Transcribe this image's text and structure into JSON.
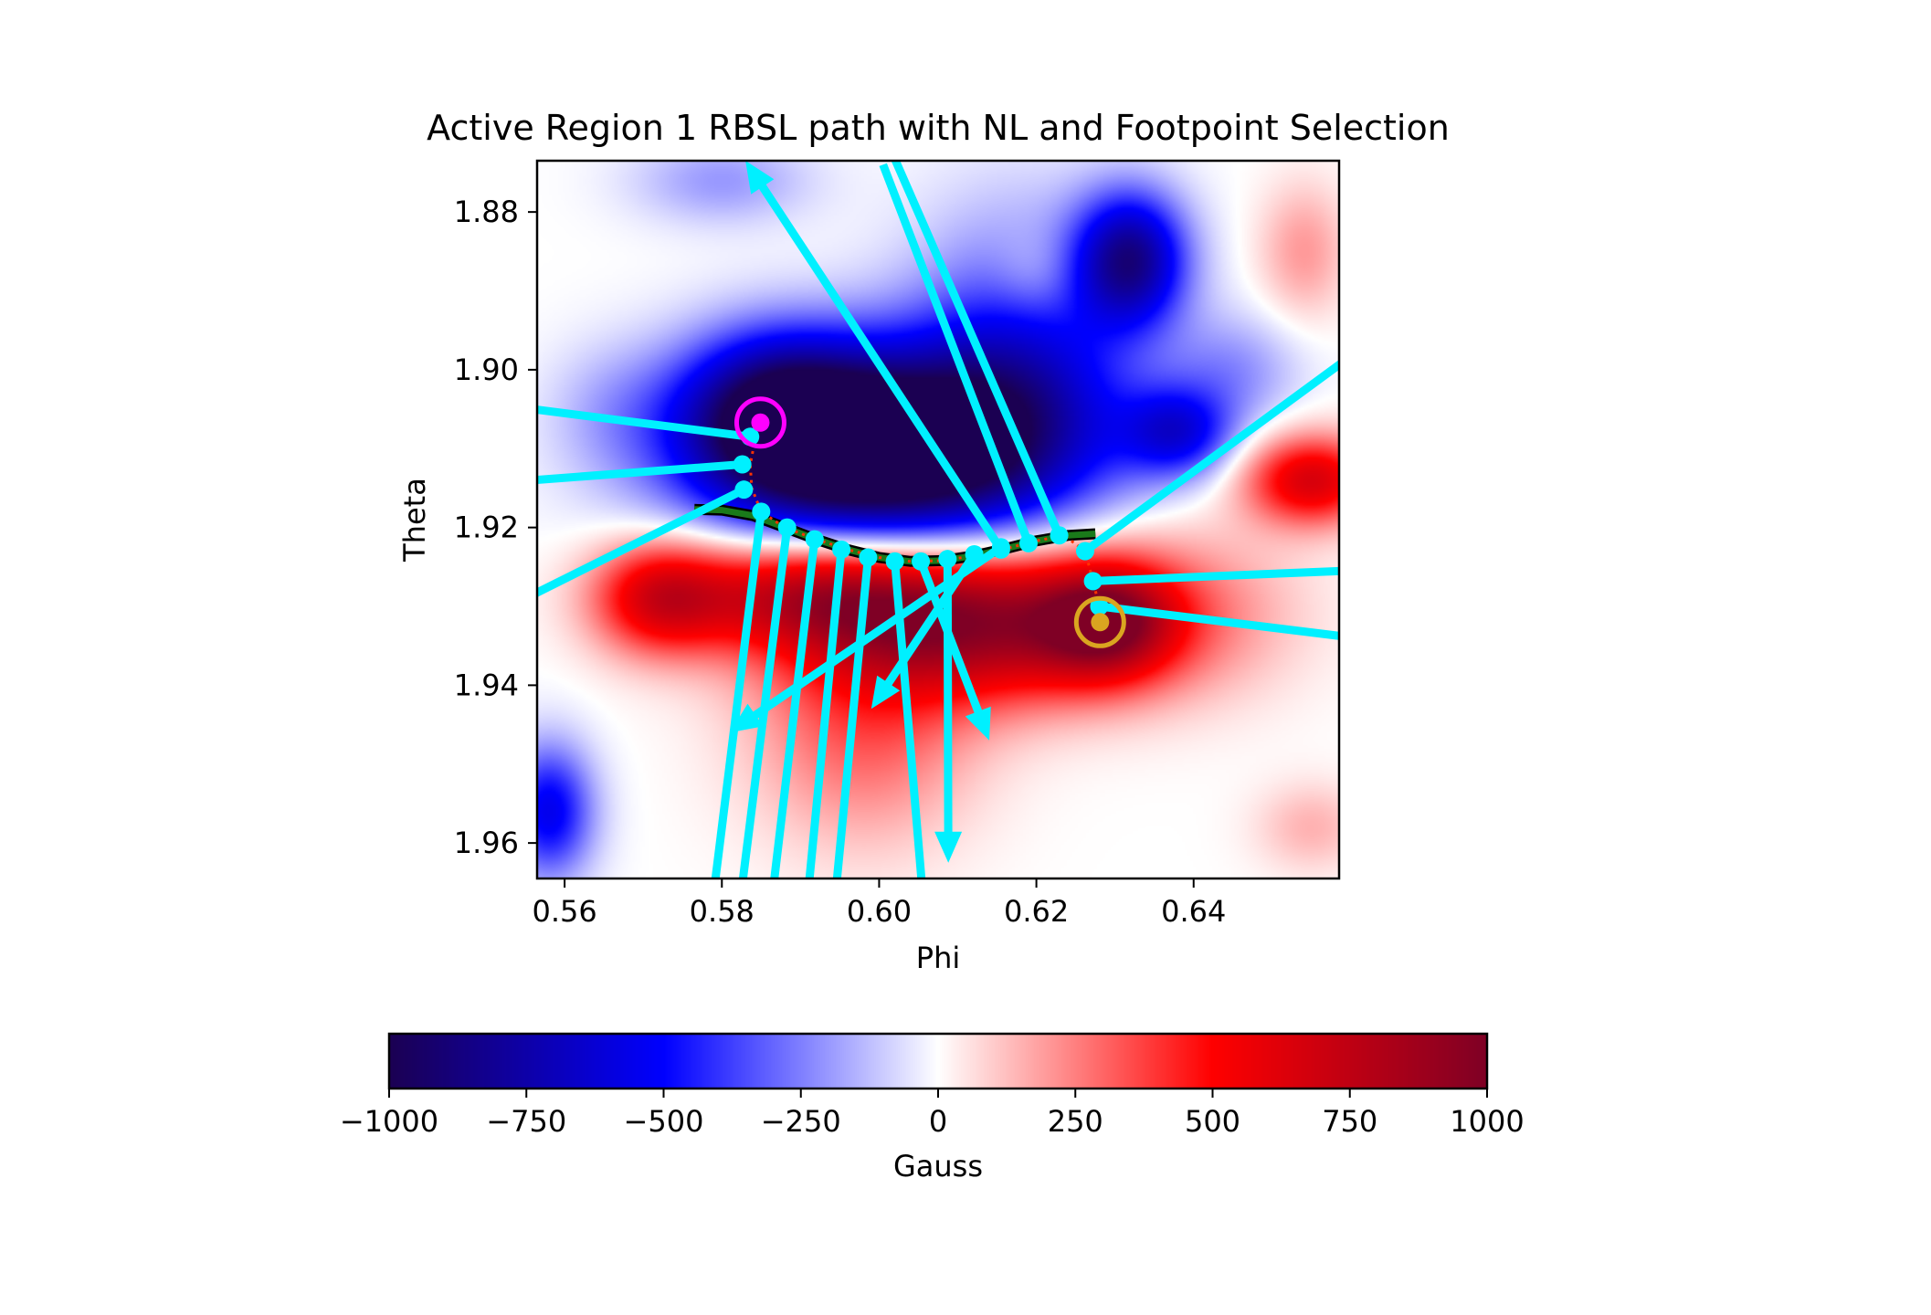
{
  "chart_data": {
    "type": "heatmap",
    "title": "Active Region 1 RBSL path with NL and Footpoint Selection",
    "xlabel": "Phi",
    "ylabel": "Theta",
    "xlim": [
      0.5565,
      0.6585
    ],
    "ylim": [
      1.9645,
      1.8735
    ],
    "y_inverted": true,
    "x_ticks": [
      {
        "value": 0.56,
        "label": "0.56"
      },
      {
        "value": 0.58,
        "label": "0.58"
      },
      {
        "value": 0.6,
        "label": "0.60"
      },
      {
        "value": 0.62,
        "label": "0.62"
      },
      {
        "value": 0.64,
        "label": "0.64"
      }
    ],
    "y_ticks": [
      {
        "value": 1.88,
        "label": "1.88"
      },
      {
        "value": 1.9,
        "label": "1.90"
      },
      {
        "value": 1.92,
        "label": "1.92"
      },
      {
        "value": 1.94,
        "label": "1.94"
      },
      {
        "value": 1.96,
        "label": "1.96"
      }
    ],
    "colormap": "seismic",
    "colormap_stops": [
      {
        "value": -1000,
        "color": "#1b0052"
      },
      {
        "value": -500,
        "color": "#0000ff"
      },
      {
        "value": 0,
        "color": "#ffffff"
      },
      {
        "value": 500,
        "color": "#ff0000"
      },
      {
        "value": 1000,
        "color": "#7f0025"
      }
    ],
    "field_blobs": [
      {
        "phi": 0.6,
        "theta": 1.912,
        "strength": -1050,
        "sx": 0.016,
        "sy": 0.008
      },
      {
        "phi": 0.587,
        "theta": 1.905,
        "strength": -800,
        "sx": 0.009,
        "sy": 0.007
      },
      {
        "phi": 0.61,
        "theta": 1.905,
        "strength": -450,
        "sx": 0.014,
        "sy": 0.008
      },
      {
        "phi": 0.632,
        "theta": 1.886,
        "strength": -800,
        "sx": 0.005,
        "sy": 0.006
      },
      {
        "phi": 0.618,
        "theta": 1.896,
        "strength": -350,
        "sx": 0.01,
        "sy": 0.012
      },
      {
        "phi": 0.638,
        "theta": 1.908,
        "strength": -500,
        "sx": 0.005,
        "sy": 0.004
      },
      {
        "phi": 0.645,
        "theta": 1.9,
        "strength": -200,
        "sx": 0.006,
        "sy": 0.005
      },
      {
        "phi": 0.58,
        "theta": 1.876,
        "strength": -200,
        "sx": 0.008,
        "sy": 0.004
      },
      {
        "phi": 0.558,
        "theta": 1.956,
        "strength": -550,
        "sx": 0.004,
        "sy": 0.006
      },
      {
        "phi": 0.566,
        "theta": 1.905,
        "strength": -120,
        "sx": 0.006,
        "sy": 0.006
      },
      {
        "phi": 0.612,
        "theta": 1.932,
        "strength": 900,
        "sx": 0.016,
        "sy": 0.007
      },
      {
        "phi": 0.629,
        "theta": 1.932,
        "strength": 650,
        "sx": 0.006,
        "sy": 0.005
      },
      {
        "phi": 0.59,
        "theta": 1.928,
        "strength": 600,
        "sx": 0.012,
        "sy": 0.005
      },
      {
        "phi": 0.572,
        "theta": 1.929,
        "strength": 550,
        "sx": 0.006,
        "sy": 0.005
      },
      {
        "phi": 0.598,
        "theta": 1.946,
        "strength": 300,
        "sx": 0.01,
        "sy": 0.01
      },
      {
        "phi": 0.655,
        "theta": 1.914,
        "strength": 650,
        "sx": 0.006,
        "sy": 0.004
      },
      {
        "phi": 0.64,
        "theta": 1.93,
        "strength": 150,
        "sx": 0.01,
        "sy": 0.008
      },
      {
        "phi": 0.654,
        "theta": 1.885,
        "strength": 200,
        "sx": 0.004,
        "sy": 0.006
      },
      {
        "phi": 0.655,
        "theta": 1.958,
        "strength": 150,
        "sx": 0.005,
        "sy": 0.004
      },
      {
        "phi": 0.62,
        "theta": 1.888,
        "strength": 120,
        "sx": 0.004,
        "sy": 0.004
      }
    ],
    "neutral_line": [
      [
        0.5765,
        1.9177
      ],
      [
        0.58,
        1.9178
      ],
      [
        0.584,
        1.9185
      ],
      [
        0.588,
        1.92
      ],
      [
        0.592,
        1.9215
      ],
      [
        0.596,
        1.9228
      ],
      [
        0.6,
        1.9238
      ],
      [
        0.604,
        1.9243
      ],
      [
        0.608,
        1.9242
      ],
      [
        0.612,
        1.9236
      ],
      [
        0.616,
        1.9227
      ],
      [
        0.62,
        1.9217
      ],
      [
        0.624,
        1.921
      ],
      [
        0.6275,
        1.9208
      ]
    ],
    "rbsl_path": [
      [
        0.5843,
        1.9085
      ],
      [
        0.5836,
        1.912
      ],
      [
        0.5838,
        1.915
      ],
      [
        0.585,
        1.918
      ],
      [
        0.588,
        1.92
      ],
      [
        0.592,
        1.9215
      ],
      [
        0.596,
        1.9228
      ],
      [
        0.6,
        1.9238
      ],
      [
        0.604,
        1.9243
      ],
      [
        0.608,
        1.9242
      ],
      [
        0.612,
        1.9236
      ],
      [
        0.616,
        1.9227
      ],
      [
        0.62,
        1.9217
      ],
      [
        0.6235,
        1.921
      ],
      [
        0.6262,
        1.923
      ],
      [
        0.6272,
        1.9268
      ],
      [
        0.628,
        1.93
      ]
    ],
    "footpoints": [
      {
        "name": "negative footpoint",
        "phi": 0.5849,
        "theta": 1.9067,
        "color": "#ff00ff"
      },
      {
        "name": "positive footpoint",
        "phi": 0.6281,
        "theta": 1.932,
        "color": "#daa520"
      }
    ],
    "field_vectors": [
      {
        "phi": 0.5836,
        "theta": 1.9085,
        "tip_phi": 0.556,
        "tip_theta": 1.905,
        "arrowhead": false
      },
      {
        "phi": 0.5826,
        "theta": 1.912,
        "tip_phi": 0.556,
        "tip_theta": 1.914,
        "arrowhead": false
      },
      {
        "phi": 0.5828,
        "theta": 1.9152,
        "tip_phi": 0.556,
        "tip_theta": 1.9285,
        "arrowhead": false
      },
      {
        "phi": 0.585,
        "theta": 1.918,
        "tip_phi": 0.579,
        "tip_theta": 1.966,
        "arrowhead": false
      },
      {
        "phi": 0.5883,
        "theta": 1.92,
        "tip_phi": 0.5825,
        "tip_theta": 1.966,
        "arrowhead": false
      },
      {
        "phi": 0.5918,
        "theta": 1.9215,
        "tip_phi": 0.5865,
        "tip_theta": 1.966,
        "arrowhead": false
      },
      {
        "phi": 0.5952,
        "theta": 1.9228,
        "tip_phi": 0.591,
        "tip_theta": 1.966,
        "arrowhead": false
      },
      {
        "phi": 0.5986,
        "theta": 1.9238,
        "tip_phi": 0.5945,
        "tip_theta": 1.966,
        "arrowhead": false
      },
      {
        "phi": 0.602,
        "theta": 1.9243,
        "tip_phi": 0.6055,
        "tip_theta": 1.966,
        "arrowhead": false
      },
      {
        "phi": 0.6053,
        "theta": 1.9243,
        "tip_phi": 0.614,
        "tip_theta": 1.947,
        "arrowhead": true
      },
      {
        "phi": 0.6087,
        "theta": 1.924,
        "tip_phi": 0.6088,
        "tip_theta": 1.9625,
        "arrowhead": true
      },
      {
        "phi": 0.6121,
        "theta": 1.9234,
        "tip_phi": 0.599,
        "tip_theta": 1.943,
        "arrowhead": true
      },
      {
        "phi": 0.6155,
        "theta": 1.9225,
        "tip_phi": 0.581,
        "tip_theta": 1.946,
        "arrowhead": true
      },
      {
        "phi": 0.619,
        "theta": 1.922,
        "tip_phi": 0.6005,
        "tip_theta": 1.874,
        "arrowhead": false
      },
      {
        "phi": 0.6229,
        "theta": 1.921,
        "tip_phi": 0.601,
        "tip_theta": 1.871,
        "arrowhead": false
      },
      {
        "phi": 0.6155,
        "theta": 1.9228,
        "tip_phi": 0.583,
        "tip_theta": 1.8735,
        "arrowhead": true
      },
      {
        "phi": 0.6262,
        "theta": 1.923,
        "tip_phi": 0.659,
        "tip_theta": 1.899,
        "arrowhead": false
      },
      {
        "phi": 0.6272,
        "theta": 1.9268,
        "tip_phi": 0.659,
        "tip_theta": 1.9255,
        "arrowhead": false
      },
      {
        "phi": 0.628,
        "theta": 1.93,
        "tip_phi": 0.659,
        "tip_theta": 1.9338,
        "arrowhead": false
      }
    ],
    "colorbar": {
      "label": "Gauss",
      "range": [
        -1000,
        1000
      ],
      "ticks": [
        {
          "value": -1000,
          "label": "−1000"
        },
        {
          "value": -750,
          "label": "−750"
        },
        {
          "value": -500,
          "label": "−500"
        },
        {
          "value": -250,
          "label": "−250"
        },
        {
          "value": 0,
          "label": "0"
        },
        {
          "value": 250,
          "label": "250"
        },
        {
          "value": 500,
          "label": "500"
        },
        {
          "value": 750,
          "label": "750"
        },
        {
          "value": 1000,
          "label": "1000"
        }
      ],
      "orientation": "horizontal"
    },
    "colors": {
      "vector": "#00f0ff",
      "neutral_line": "#1a7a1a",
      "rbsl_path": "#ff3300"
    }
  }
}
